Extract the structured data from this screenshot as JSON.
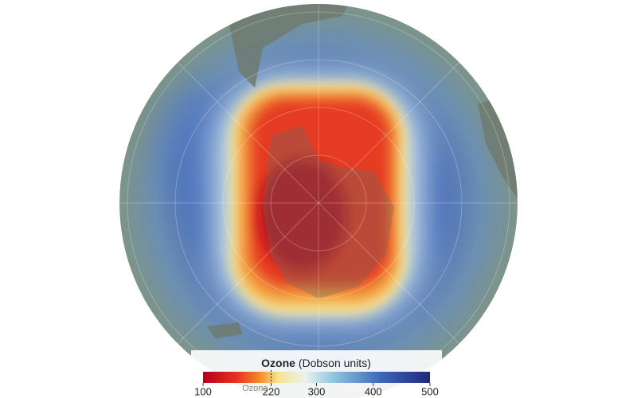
{
  "legend": {
    "title": "Ozone",
    "unit": "(Dobson units)",
    "range": [
      100,
      500
    ],
    "ticks": [
      100,
      220,
      300,
      400,
      500
    ],
    "marker": 220,
    "marker_label": "Ozone"
  }
}
